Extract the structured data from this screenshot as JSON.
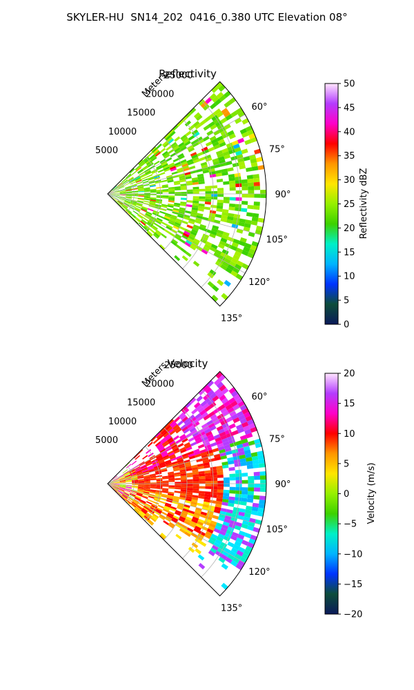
{
  "suptitle": "SKYLER-HU  SN14_202  0416_0.380 UTC Elevation 08°",
  "radius_axis_label": "Meters",
  "sector_deg": [
    45,
    135
  ],
  "range_max_m": 30000,
  "range_ticks": [
    "5000",
    "10000",
    "15000",
    "20000",
    "25000"
  ],
  "angle_ticks": [
    "60°",
    "75°",
    "90°",
    "105°",
    "120°",
    "135°"
  ],
  "panels": [
    {
      "title": "Reflectivity",
      "colorbar_label": "Reflectivity dBZ",
      "colorbar_ticks": [
        "0",
        "5",
        "10",
        "15",
        "20",
        "25",
        "30",
        "35",
        "40",
        "45",
        "50"
      ],
      "vmin": 0,
      "vmax": 50,
      "colormap": [
        "#0b1a5a",
        "#0d4d3a",
        "#0033ff",
        "#00b4ff",
        "#00f0c8",
        "#3cd200",
        "#96f000",
        "#ffe600",
        "#ff9600",
        "#ff0000",
        "#ff00c8",
        "#b43cff",
        "#ffe6ff"
      ]
    },
    {
      "title": "Velocity",
      "colorbar_label": "Velocity (m/s)",
      "colorbar_ticks": [
        "−20",
        "−15",
        "−10",
        "−5",
        "0",
        "5",
        "10",
        "15",
        "20"
      ],
      "vmin": -20,
      "vmax": 20,
      "colormap": [
        "#0b1a5a",
        "#0d4d3a",
        "#0033ff",
        "#00b4ff",
        "#00f0c8",
        "#3cd200",
        "#96f000",
        "#ffe600",
        "#ff9600",
        "#ff0000",
        "#ff00c8",
        "#b43cff",
        "#ffe6ff"
      ]
    }
  ],
  "chart_data": [
    {
      "type": "heatmap",
      "projection": "polar-sector",
      "title": "Reflectivity",
      "theta_range_deg": [
        45,
        135
      ],
      "r_range_m": [
        0,
        30000
      ],
      "colorbar_label": "Reflectivity dBZ",
      "value_range": [
        0,
        50
      ],
      "typical_value": 20,
      "peak_value": 40,
      "grid": true
    },
    {
      "type": "heatmap",
      "projection": "polar-sector",
      "title": "Velocity",
      "theta_range_deg": [
        45,
        135
      ],
      "r_range_m": [
        0,
        30000
      ],
      "colorbar_label": "Velocity (m/s)",
      "value_range": [
        -20,
        20
      ],
      "grid": true
    }
  ]
}
